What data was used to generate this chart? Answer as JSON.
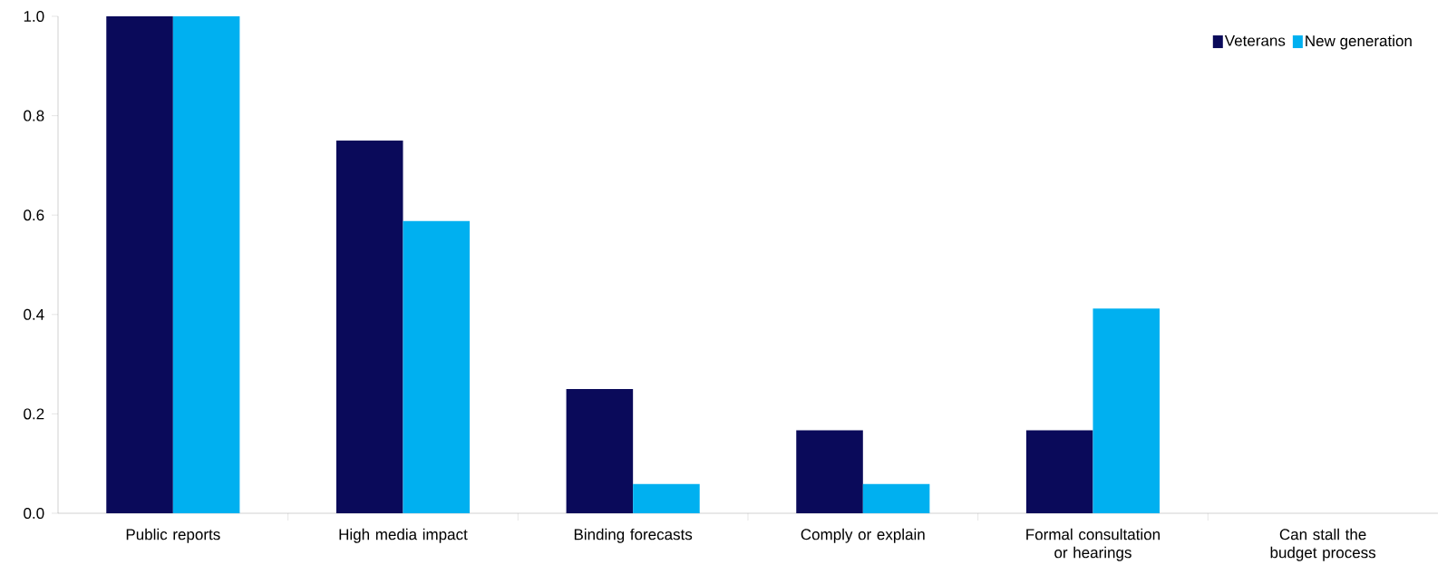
{
  "chart_data": {
    "type": "bar",
    "categories": [
      "Public reports",
      "High media impact",
      "Binding forecasts",
      "Comply or explain",
      "Formal consultation or hearings",
      "Can stall the budget process"
    ],
    "series": [
      {
        "name": "Veterans",
        "color": "#0a0a5a",
        "values": [
          1.0,
          0.75,
          0.25,
          0.167,
          0.167,
          0
        ]
      },
      {
        "name": "New generation",
        "color": "#00b0f0",
        "values": [
          1.0,
          0.588,
          0.059,
          0.059,
          0.412,
          0
        ]
      }
    ],
    "ylim": [
      0,
      1
    ],
    "yticks": [
      {
        "value": 0,
        "label": "0.0"
      },
      {
        "value": 0.2,
        "label": "0.2"
      },
      {
        "value": 0.4,
        "label": "0.4"
      },
      {
        "value": 0.6,
        "label": "0.6"
      },
      {
        "value": 0.8,
        "label": "0.8"
      },
      {
        "value": 1,
        "label": "1.0"
      }
    ],
    "grid": false,
    "legend": "top right"
  }
}
